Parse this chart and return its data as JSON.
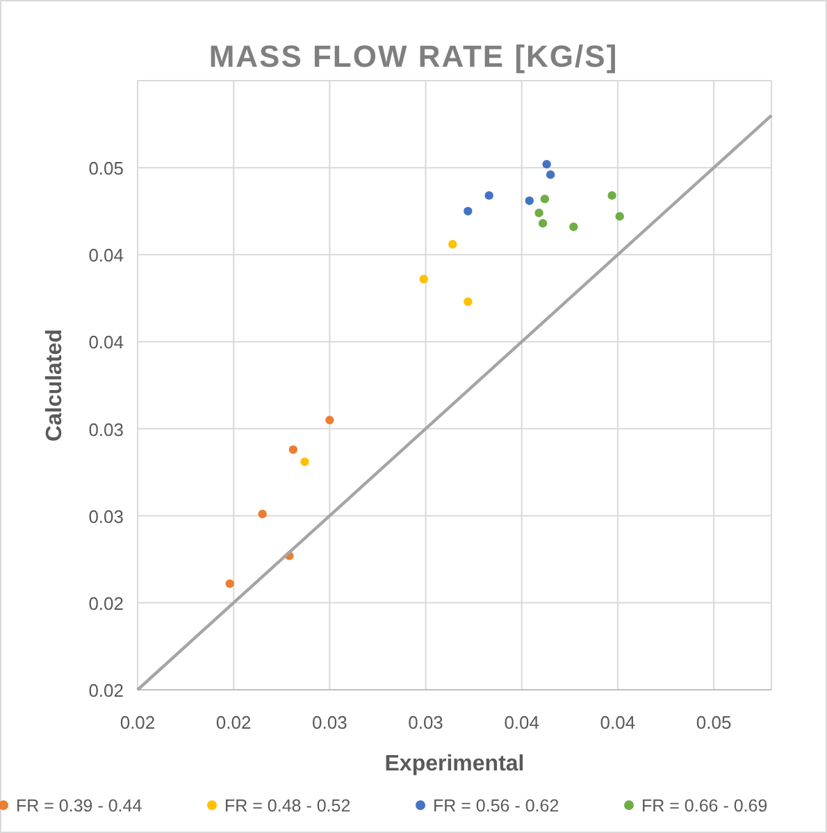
{
  "chart_data": {
    "type": "scatter",
    "title": "MASS FLOW RATE [KG/S]",
    "xlabel": "Experimental",
    "ylabel": "Calculated",
    "xlim": [
      0.02,
      0.053
    ],
    "ylim": [
      0.02,
      0.055
    ],
    "xticks": [
      {
        "value": 0.02,
        "label": "0.02"
      },
      {
        "value": 0.025,
        "label": "0.02"
      },
      {
        "value": 0.03,
        "label": "0.03"
      },
      {
        "value": 0.035,
        "label": "0.03"
      },
      {
        "value": 0.04,
        "label": "0.04"
      },
      {
        "value": 0.045,
        "label": "0.04"
      },
      {
        "value": 0.05,
        "label": "0.05"
      }
    ],
    "yticks": [
      {
        "value": 0.02,
        "label": "0.02"
      },
      {
        "value": 0.025,
        "label": "0.02"
      },
      {
        "value": 0.03,
        "label": "0.03"
      },
      {
        "value": 0.035,
        "label": "0.03"
      },
      {
        "value": 0.04,
        "label": "0.04"
      },
      {
        "value": 0.045,
        "label": "0.04"
      },
      {
        "value": 0.05,
        "label": "0.05"
      }
    ],
    "grid": true,
    "legend": "bottom",
    "marker": "circle",
    "series": [
      {
        "name": "FR = 0.39 - 0.44",
        "color": "#ed7d31",
        "x": [
          0.0248,
          0.0265,
          0.0279,
          0.0281,
          0.03
        ],
        "values": [
          0.0261,
          0.0301,
          0.0277,
          0.0338,
          0.0355
        ]
      },
      {
        "name": "FR = 0.48 - 0.52",
        "color": "#ffc000",
        "x": [
          0.0287,
          0.0349,
          0.0364,
          0.0372
        ],
        "values": [
          0.0331,
          0.0436,
          0.0456,
          0.0423
        ]
      },
      {
        "name": "FR = 0.56 - 0.62",
        "color": "#4472c4",
        "x": [
          0.0372,
          0.0383,
          0.0404,
          0.0413,
          0.0415
        ],
        "values": [
          0.0475,
          0.0484,
          0.0481,
          0.0502,
          0.0496
        ]
      },
      {
        "name": "FR = 0.66 - 0.69",
        "color": "#70ad47",
        "x": [
          0.0412,
          0.0409,
          0.0411,
          0.0427,
          0.0447,
          0.0451
        ],
        "values": [
          0.0482,
          0.0474,
          0.0468,
          0.0466,
          0.0484,
          0.0472
        ]
      },
      {
        "type": "line",
        "color": "#a5a5a5",
        "marker": "none",
        "line_style": "solid",
        "x": [
          0.02,
          0.053
        ],
        "values": [
          0.02,
          0.053
        ]
      }
    ]
  }
}
